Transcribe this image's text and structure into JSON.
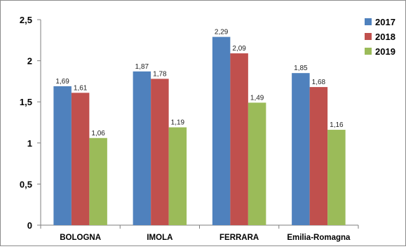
{
  "chart_data": {
    "type": "bar",
    "categories": [
      "BOLOGNA",
      "IMOLA",
      "FERRARA",
      "Emilia-Romagna"
    ],
    "series": [
      {
        "name": "2017",
        "color": "#4f81bd",
        "values": [
          1.69,
          1.87,
          2.29,
          1.85
        ],
        "labels": [
          "1,69",
          "1,87",
          "2,29",
          "1,85"
        ]
      },
      {
        "name": "2018",
        "color": "#c0504d",
        "values": [
          1.61,
          1.78,
          2.09,
          1.68
        ],
        "labels": [
          "1,61",
          "1,78",
          "2,09",
          "1,68"
        ]
      },
      {
        "name": "2019",
        "color": "#9bbb59",
        "values": [
          1.06,
          1.19,
          1.49,
          1.16
        ],
        "labels": [
          "1,06",
          "1,19",
          "1,49",
          "1,16"
        ]
      }
    ],
    "yticks": [
      0,
      0.5,
      1,
      1.5,
      2,
      2.5
    ],
    "ytick_labels": [
      "0",
      "0,5",
      "1",
      "1,5",
      "2",
      "2,5"
    ],
    "ylim": [
      0,
      2.5
    ],
    "grid": false,
    "legend": "right"
  }
}
